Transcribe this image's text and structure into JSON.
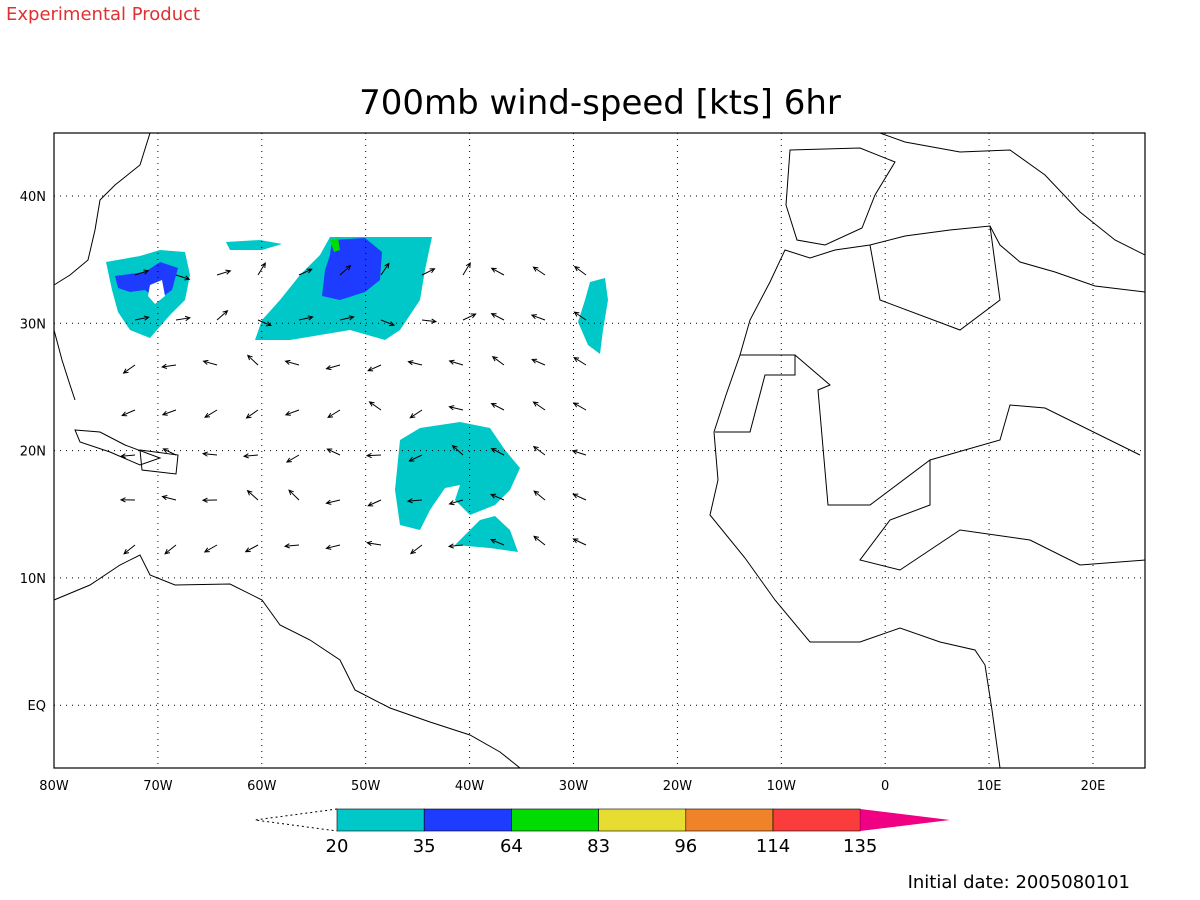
{
  "header": {
    "label": "Experimental Product"
  },
  "title": "700mb wind-speed [kts] 6hr",
  "map": {
    "x_labels": [
      "80W",
      "70W",
      "60W",
      "50W",
      "40W",
      "30W",
      "20W",
      "10W",
      "0",
      "10E",
      "20E"
    ],
    "y_labels": [
      "40N",
      "30N",
      "20N",
      "10N",
      "EQ"
    ]
  },
  "colorbar": {
    "levels": [
      20,
      35,
      64,
      83,
      96,
      114,
      135
    ],
    "colors": [
      "#00c8c8",
      "#1e3cff",
      "#00dc00",
      "#e6dc32",
      "#f08228",
      "#fa3c3c",
      "#f00082"
    ]
  },
  "footer": {
    "initial_date": "Initial date: 2005080101"
  }
}
